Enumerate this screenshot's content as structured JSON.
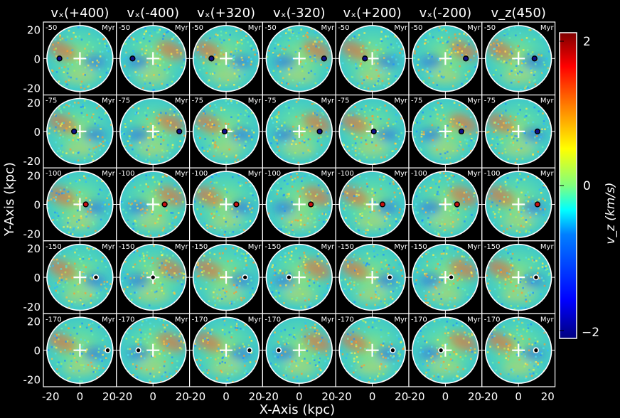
{
  "chart_data": {
    "type": "heatmap",
    "column_titles": [
      "vₓ(+400)",
      "vₓ(-400)",
      "vₓ(+320)",
      "vₓ(-320)",
      "vₓ(+200)",
      "vₓ(-200)",
      "v_z(450)"
    ],
    "row_times": [
      "-50",
      "-75",
      "-100",
      "-150",
      "-170"
    ],
    "time_unit": "Myr",
    "xlabel": "X-Axis (kpc)",
    "ylabel": "Y-Axis (kpc)",
    "x_ticks": [
      "-20",
      "0",
      "20"
    ],
    "y_ticks": [
      "20",
      "0",
      "-20"
    ],
    "xlim": [
      -25,
      25
    ],
    "ylim": [
      -25,
      25
    ],
    "colorbar": {
      "label": "v_z (km/s)",
      "min": -2,
      "max": 2,
      "ticks": [
        {
          "value": 2,
          "label": "2"
        },
        {
          "value": 0,
          "label": "0"
        },
        {
          "value": -2,
          "label": "−2"
        }
      ],
      "colors": [
        "#00007f",
        "#0000ff",
        "#007fff",
        "#00ffff",
        "#7fff7f",
        "#ffff00",
        "#ff7f00",
        "#ff0000",
        "#7f0000"
      ]
    },
    "satellite_positions_kpc": [
      [
        [
          -14,
          0
        ],
        [
          -14,
          0
        ],
        [
          -10,
          0
        ],
        [
          17,
          0
        ],
        [
          -5,
          0
        ],
        [
          14,
          0
        ],
        [
          11,
          0
        ]
      ],
      [
        [
          -4,
          0
        ],
        [
          18,
          0
        ],
        [
          -1,
          0
        ],
        [
          14,
          0
        ],
        [
          1,
          0
        ],
        [
          11,
          0
        ],
        [
          13,
          0
        ]
      ],
      [
        [
          4,
          0
        ],
        [
          8,
          0
        ],
        [
          7,
          0
        ],
        [
          8,
          0
        ],
        [
          7,
          0
        ],
        [
          8,
          0
        ],
        [
          13,
          0
        ]
      ],
      [
        [
          11,
          0
        ],
        [
          0,
          0
        ],
        [
          13,
          0
        ],
        [
          -7,
          0
        ],
        [
          12,
          0
        ],
        [
          4,
          0
        ],
        [
          12,
          0
        ]
      ],
      [
        [
          19,
          0
        ],
        [
          -10,
          0
        ],
        [
          16,
          0
        ],
        [
          -14,
          0
        ],
        [
          14,
          0
        ],
        [
          -3,
          0
        ],
        [
          12,
          0
        ]
      ]
    ],
    "satellite_state": [
      [
        "dark",
        "dark",
        "dark",
        "dark",
        "dark",
        "dark",
        "dark"
      ],
      [
        "dark",
        "dark",
        "dark",
        "dark",
        "dark",
        "dark",
        "dark"
      ],
      [
        "red",
        "red",
        "red",
        "red",
        "red",
        "red",
        "red"
      ],
      [
        "white",
        "white",
        "white",
        "white",
        "white",
        "white",
        "white"
      ],
      [
        "white",
        "white",
        "white",
        "white",
        "white",
        "white",
        "white"
      ]
    ]
  }
}
